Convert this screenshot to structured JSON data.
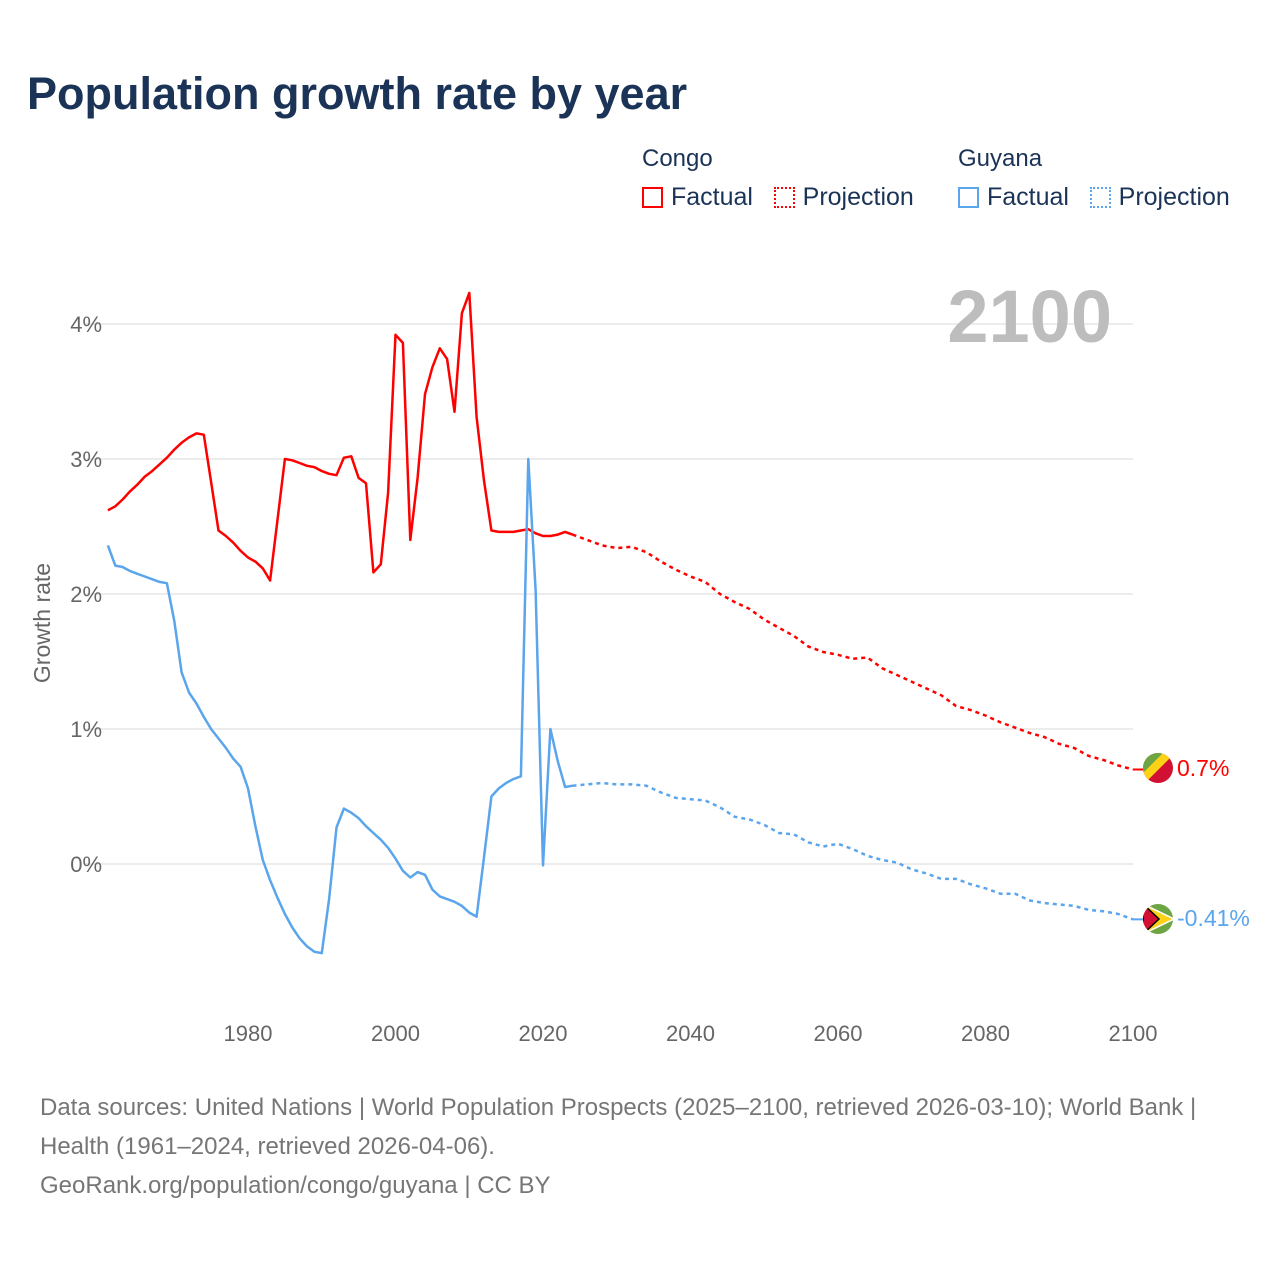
{
  "title": "Population growth rate by year",
  "legend": {
    "groups": [
      {
        "name": "Congo",
        "factual": "Factual",
        "projection": "Projection",
        "color": "#ff0000"
      },
      {
        "name": "Guyana",
        "factual": "Factual",
        "projection": "Projection",
        "color": "#5aa5ec"
      }
    ]
  },
  "year_label": "2100",
  "end_labels": {
    "congo": "0.7%",
    "guyana": "-0.41%"
  },
  "footer": {
    "sources": "Data sources: United Nations | World Population Prospects (2025–2100, retrieved 2026-03-10); World Bank | Health (1961–2024, retrieved 2026-04-06).",
    "credit": "GeoRank.org/population/congo/guyana | CC BY"
  },
  "chart_data": {
    "type": "line",
    "title": "Population growth rate by year",
    "xlabel": "",
    "ylabel": "Growth rate",
    "xlim": [
      1961,
      2100
    ],
    "ylim": [
      -1,
      4.3
    ],
    "grid": true,
    "legend_position": "top-right",
    "x_ticks": [
      1980,
      2000,
      2020,
      2040,
      2060,
      2080,
      2100
    ],
    "y_ticks": [
      0,
      1,
      2,
      3,
      4
    ],
    "y_tick_labels": [
      "0%",
      "1%",
      "2%",
      "3%",
      "4%"
    ],
    "series": [
      {
        "name": "Congo",
        "color": "#ff0000",
        "factual": {
          "start": 1961,
          "step": 1,
          "values": [
            2.62,
            2.65,
            2.7,
            2.76,
            2.81,
            2.87,
            2.91,
            2.96,
            3.01,
            3.07,
            3.12,
            3.16,
            3.19,
            3.18,
            2.83,
            2.47,
            2.43,
            2.38,
            2.32,
            2.27,
            2.24,
            2.19,
            2.1,
            2.55,
            3.0,
            2.99,
            2.97,
            2.95,
            2.94,
            2.91,
            2.89,
            2.88,
            3.01,
            3.02,
            2.86,
            2.82,
            2.16,
            2.22,
            2.75,
            3.92,
            3.86,
            2.4,
            2.86,
            3.48,
            3.68,
            3.82,
            3.74,
            3.35,
            4.08,
            4.23,
            3.31,
            2.84,
            2.47,
            2.46,
            2.46,
            2.46,
            2.47,
            2.48,
            2.45,
            2.43,
            2.43,
            2.44,
            2.46,
            2.44
          ]
        },
        "projection": {
          "start": 2024,
          "step": 2,
          "values": [
            2.44,
            2.4,
            2.36,
            2.34,
            2.35,
            2.31,
            2.24,
            2.18,
            2.13,
            2.09,
            2.0,
            1.94,
            1.89,
            1.81,
            1.75,
            1.69,
            1.61,
            1.57,
            1.55,
            1.52,
            1.53,
            1.45,
            1.4,
            1.35,
            1.3,
            1.25,
            1.17,
            1.14,
            1.1,
            1.05,
            1.01,
            0.97,
            0.94,
            0.89,
            0.86,
            0.8,
            0.77,
            0.73,
            0.7
          ]
        }
      },
      {
        "name": "Guyana",
        "color": "#5aa5ec",
        "factual": {
          "start": 1961,
          "step": 1,
          "values": [
            2.36,
            2.21,
            2.2,
            2.17,
            2.15,
            2.13,
            2.11,
            2.09,
            2.08,
            1.8,
            1.42,
            1.27,
            1.19,
            1.09,
            1.0,
            0.93,
            0.86,
            0.78,
            0.72,
            0.56,
            0.28,
            0.03,
            -0.12,
            -0.25,
            -0.37,
            -0.47,
            -0.55,
            -0.61,
            -0.65,
            -0.66,
            -0.26,
            0.27,
            0.41,
            0.38,
            0.34,
            0.28,
            0.23,
            0.18,
            0.12,
            0.04,
            -0.05,
            -0.1,
            -0.06,
            -0.08,
            -0.19,
            -0.24,
            -0.26,
            -0.28,
            -0.31,
            -0.36,
            -0.39,
            0.05,
            0.5,
            0.56,
            0.6,
            0.63,
            0.65,
            3.0,
            2.03,
            -0.01,
            1.0,
            0.76,
            0.57,
            0.58
          ]
        },
        "projection": {
          "start": 2024,
          "step": 2,
          "values": [
            0.58,
            0.59,
            0.6,
            0.59,
            0.59,
            0.58,
            0.53,
            0.49,
            0.48,
            0.47,
            0.42,
            0.35,
            0.33,
            0.29,
            0.23,
            0.22,
            0.16,
            0.13,
            0.15,
            0.11,
            0.06,
            0.03,
            0.01,
            -0.04,
            -0.07,
            -0.11,
            -0.11,
            -0.15,
            -0.18,
            -0.22,
            -0.22,
            -0.27,
            -0.29,
            -0.3,
            -0.31,
            -0.34,
            -0.35,
            -0.37,
            -0.41
          ]
        }
      }
    ]
  }
}
